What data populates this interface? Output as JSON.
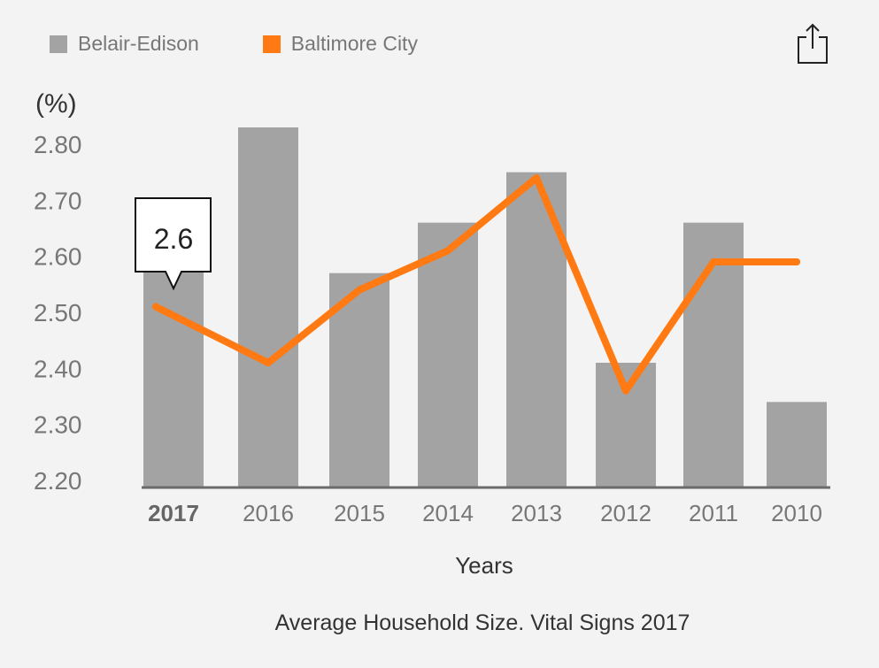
{
  "legend": [
    {
      "name": "Belair-Edison",
      "color": "#a3a3a3"
    },
    {
      "name": "Baltimore City",
      "color": "#ff7a13"
    }
  ],
  "share_icon": "share-icon",
  "tooltip": {
    "value": "2.6"
  },
  "caption": "Average Household Size. Vital Signs 2017",
  "chart_data": {
    "type": "bar",
    "categories": [
      "2017",
      "2016",
      "2015",
      "2014",
      "2013",
      "2012",
      "2011",
      "2010"
    ],
    "highlighted_category": "2017",
    "series": [
      {
        "name": "Belair-Edison",
        "type": "bar",
        "color": "#a3a3a3",
        "values": [
          2.58,
          2.83,
          2.57,
          2.66,
          2.75,
          2.41,
          2.66,
          2.34
        ]
      },
      {
        "name": "Baltimore City",
        "type": "line",
        "color": "#ff7a13",
        "values": [
          2.51,
          2.41,
          2.54,
          2.61,
          2.74,
          2.36,
          2.59,
          2.59
        ]
      }
    ],
    "ylabel": "(%)",
    "xlabel": "Years",
    "yticks": [
      "2.20",
      "2.30",
      "2.40",
      "2.50",
      "2.60",
      "2.70",
      "2.80"
    ],
    "ylim": [
      2.2,
      2.85
    ],
    "grid": false,
    "legend_position": "top-left"
  }
}
